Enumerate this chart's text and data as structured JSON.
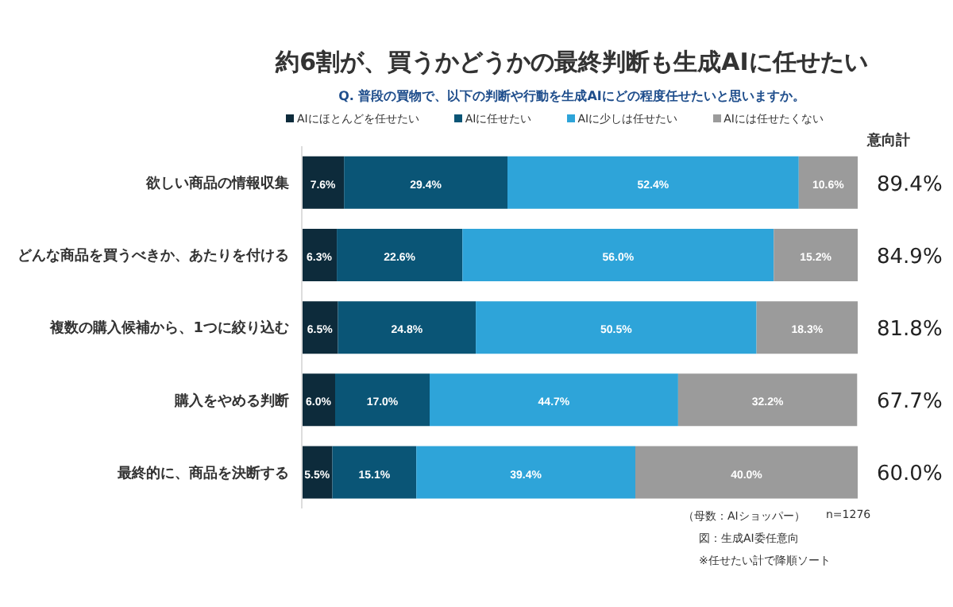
{
  "chart_data": {
    "type": "bar",
    "orientation": "horizontal",
    "stacked": true,
    "title": "約6割が、買うかどうかの最終判断も生成AIに任せたい",
    "subtitle": "Q. 普段の買物で、以下の判断や行動を生成AIにどの程度任せたいと思いますか。",
    "categories": [
      "欲しい商品の情報収集",
      "どんな商品を買うべきか、あたりを付ける",
      "複数の購入候補から、1つに絞り込む",
      "購入をやめる判断",
      "最終的に、商品を決断する"
    ],
    "series": [
      {
        "name": "AIにほとんどを任せたい",
        "color": "#0d2b3b",
        "values": [
          7.6,
          6.3,
          6.5,
          6.0,
          5.5
        ],
        "value_labels": [
          "7.6%",
          "6.3%",
          "6.5%",
          "6.0%",
          "5.5%"
        ]
      },
      {
        "name": "AIに任せたい",
        "color": "#0a5576",
        "values": [
          29.4,
          22.6,
          24.8,
          17.0,
          15.1
        ],
        "value_labels": [
          "29.4%",
          "22.6%",
          "24.8%",
          "17.0%",
          "15.1%"
        ]
      },
      {
        "name": "AIに少しは任せたい",
        "color": "#2ea4d9",
        "values": [
          52.4,
          56.0,
          50.5,
          44.7,
          39.4
        ],
        "value_labels": [
          "52.4%",
          "56.0%",
          "50.5%",
          "44.7%",
          "39.4%"
        ]
      },
      {
        "name": "AIには任せたくない",
        "color": "#9b9b9b",
        "values": [
          10.6,
          15.2,
          18.3,
          32.2,
          40.0
        ],
        "value_labels": [
          "10.6%",
          "15.2%",
          "18.3%",
          "32.2%",
          "40.0%"
        ]
      }
    ],
    "xlim": [
      0,
      100
    ],
    "tick_labels": "y",
    "legend": "top",
    "annotations": [
      "意向計",
      "89.4%",
      "84.9%",
      "81.8%",
      "67.7%",
      "60.0%",
      "（母数：AIショッパー）",
      "n=1276",
      "図：生成AI委任意向",
      "※任せたい計で降順ソート"
    ]
  }
}
